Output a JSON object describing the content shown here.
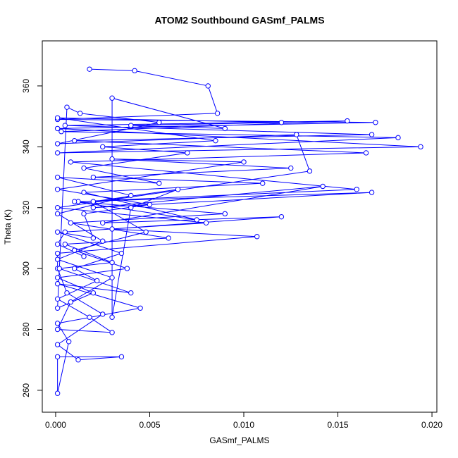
{
  "chart_data": {
    "type": "line",
    "markers": true,
    "title": "ATOM2 Southbound GASmf_PALMS",
    "xlabel": "GASmf_PALMS",
    "ylabel": "Theta (K)",
    "xlim": [
      -0.00071,
      0.02026
    ],
    "ylim": [
      252.8,
      374.8
    ],
    "xticks": [
      {
        "value": 0,
        "label": "0.000"
      },
      {
        "value": 0.005,
        "label": "0.005"
      },
      {
        "value": 0.01,
        "label": "0.010"
      },
      {
        "value": 0.015,
        "label": "0.015"
      },
      {
        "value": 0.02,
        "label": "0.020"
      }
    ],
    "yticks": [
      260,
      280,
      300,
      320,
      340,
      360
    ],
    "x": [
      0.0018,
      0.0042,
      0.0081,
      0.0086,
      0.0001,
      0.017,
      0.0001,
      0.0194,
      0.0001,
      0.0182,
      0.0003,
      0.0155,
      0.0005,
      0.0168,
      0.001,
      0.0165,
      0.0008,
      0.016,
      0.0012,
      0.0168,
      0.002,
      0.0142,
      0.0025,
      0.012,
      0.003,
      0.0107,
      0.0001,
      0.0001,
      0.0006,
      0.0025,
      0.0001,
      0.0012,
      0.0035,
      0.0001,
      0.0001,
      0.0007,
      0.0001,
      0.0045,
      0.0001,
      0.004,
      0.0002,
      0.003,
      0.0005,
      0.006,
      0.0008,
      0.009,
      0.001,
      0.0075,
      0.0015,
      0.011,
      0.002,
      0.0125,
      0.003,
      0.01,
      0.0001,
      0.005,
      0.0015,
      0.002,
      0.0001,
      0.0035,
      0.001,
      0.0022,
      0.0001,
      0.0018,
      0.003,
      0.0001,
      0.0008,
      0.003,
      0.0001,
      0.0025,
      0.0001,
      0.004,
      0.0001,
      0.0055,
      0.0015,
      0.007,
      0.0025,
      0.0085,
      0.0001,
      0.012,
      0.004,
      0.009,
      0.003,
      0.003,
      0.004,
      0.0065,
      0.002,
      0.0048,
      0.001,
      0.0038,
      0.0001,
      0.002,
      0.0001,
      0.0006,
      0.0013,
      0.0055,
      0.0001,
      0.0128,
      0.0135,
      0.0001,
      0.008,
      0.0005,
      0.0001,
      0.0015
    ],
    "series": [
      {
        "name": "Theta",
        "color": "#0000ff",
        "values": [
          365.5,
          365,
          360,
          351,
          349,
          348,
          346,
          340,
          338,
          343,
          345,
          348.5,
          347,
          344,
          342,
          338,
          335,
          326,
          322,
          325,
          320,
          327,
          315,
          317,
          313,
          310.5,
          305,
          300,
          292,
          285,
          275,
          270,
          271,
          271,
          259,
          276,
          282,
          287,
          295,
          292,
          300,
          302,
          308,
          310,
          315,
          318,
          322,
          316,
          325,
          328,
          330,
          333,
          336,
          335,
          326,
          321,
          318,
          310,
          312,
          305,
          300,
          296,
          290,
          284,
          279,
          280,
          289,
          297,
          303,
          309,
          318,
          324,
          330,
          328,
          333,
          338,
          340,
          342,
          349.5,
          348,
          347,
          346,
          356,
          284,
          320,
          326,
          322,
          312,
          306,
          300,
          297,
          292,
          287,
          353,
          351,
          348,
          341,
          344,
          332,
          320,
          315,
          312,
          308,
          304
        ]
      }
    ]
  }
}
